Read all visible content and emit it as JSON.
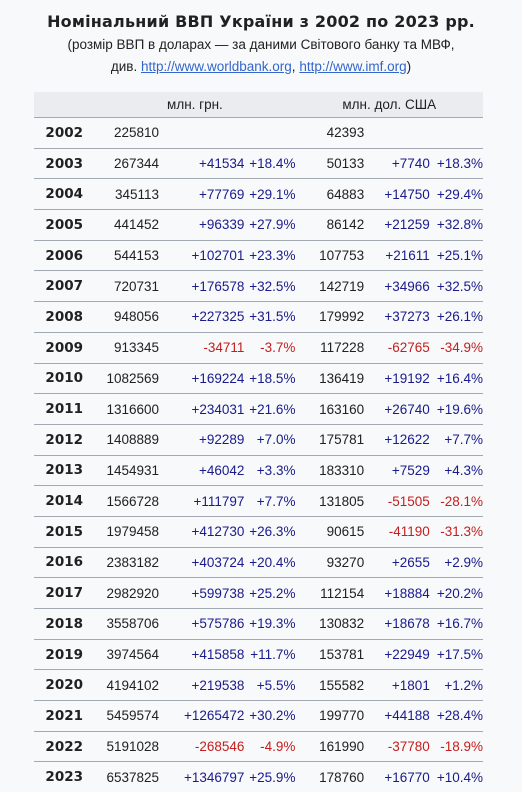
{
  "title": "Номінальний ВВП України з 2002 по 2023 рр.",
  "subtitle": {
    "line1": "(розмір ВВП в доларах — за даними Світового банку та МВФ,",
    "prefix": "див. ",
    "link1": "http://www.worldbank.org",
    "sep": ", ",
    "link2": "http://www.imf.org",
    "suffix": ")"
  },
  "header": {
    "uah": "млн. грн.",
    "usd": "млн. дол. США"
  },
  "rows": [
    {
      "year": "2002",
      "uah": "225810",
      "duah": "",
      "puah": "",
      "usd": "42393",
      "dusd": "",
      "pusd": ""
    },
    {
      "year": "2003",
      "uah": "267344",
      "duah": "+41534",
      "puah": "+18.4%",
      "usd": "50133",
      "dusd": "+7740",
      "pusd": "+18.3%"
    },
    {
      "year": "2004",
      "uah": "345113",
      "duah": "+77769",
      "puah": "+29.1%",
      "usd": "64883",
      "dusd": "+14750",
      "pusd": "+29.4%"
    },
    {
      "year": "2005",
      "uah": "441452",
      "duah": "+96339",
      "puah": "+27.9%",
      "usd": "86142",
      "dusd": "+21259",
      "pusd": "+32.8%"
    },
    {
      "year": "2006",
      "uah": "544153",
      "duah": "+102701",
      "puah": "+23.3%",
      "usd": "107753",
      "dusd": "+21611",
      "pusd": "+25.1%"
    },
    {
      "year": "2007",
      "uah": "720731",
      "duah": "+176578",
      "puah": "+32.5%",
      "usd": "142719",
      "dusd": "+34966",
      "pusd": "+32.5%"
    },
    {
      "year": "2008",
      "uah": "948056",
      "duah": "+227325",
      "puah": "+31.5%",
      "usd": "179992",
      "dusd": "+37273",
      "pusd": "+26.1%"
    },
    {
      "year": "2009",
      "uah": "913345",
      "duah": "-34711",
      "puah": "-3.7%",
      "usd": "117228",
      "dusd": "-62765",
      "pusd": "-34.9%"
    },
    {
      "year": "2010",
      "uah": "1082569",
      "duah": "+169224",
      "puah": "+18.5%",
      "usd": "136419",
      "dusd": "+19192",
      "pusd": "+16.4%"
    },
    {
      "year": "2011",
      "uah": "1316600",
      "duah": "+234031",
      "puah": "+21.6%",
      "usd": "163160",
      "dusd": "+26740",
      "pusd": "+19.6%"
    },
    {
      "year": "2012",
      "uah": "1408889",
      "duah": "+92289",
      "puah": "+7.0%",
      "usd": "175781",
      "dusd": "+12622",
      "pusd": "+7.7%"
    },
    {
      "year": "2013",
      "uah": "1454931",
      "duah": "+46042",
      "puah": "+3.3%",
      "usd": "183310",
      "dusd": "+7529",
      "pusd": "+4.3%"
    },
    {
      "year": "2014",
      "uah": "1566728",
      "duah": "+111797",
      "puah": "+7.7%",
      "usd": "131805",
      "dusd": "-51505",
      "pusd": "-28.1%"
    },
    {
      "year": "2015",
      "uah": "1979458",
      "duah": "+412730",
      "puah": "+26.3%",
      "usd": "90615",
      "dusd": "-41190",
      "pusd": "-31.3%"
    },
    {
      "year": "2016",
      "uah": "2383182",
      "duah": "+403724",
      "puah": "+20.4%",
      "usd": "93270",
      "dusd": "+2655",
      "pusd": "+2.9%"
    },
    {
      "year": "2017",
      "uah": "2982920",
      "duah": "+599738",
      "puah": "+25.2%",
      "usd": "112154",
      "dusd": "+18884",
      "pusd": "+20.2%"
    },
    {
      "year": "2018",
      "uah": "3558706",
      "duah": "+575786",
      "puah": "+19.3%",
      "usd": "130832",
      "dusd": "+18678",
      "pusd": "+16.7%"
    },
    {
      "year": "2019",
      "uah": "3974564",
      "duah": "+415858",
      "puah": "+11.7%",
      "usd": "153781",
      "dusd": "+22949",
      "pusd": "+17.5%"
    },
    {
      "year": "2020",
      "uah": "4194102",
      "duah": "+219538",
      "puah": "+5.5%",
      "usd": "155582",
      "dusd": "+1801",
      "pusd": "+1.2%"
    },
    {
      "year": "2021",
      "uah": "5459574",
      "duah": "+1265472",
      "puah": "+30.2%",
      "usd": "199770",
      "dusd": "+44188",
      "pusd": "+28.4%"
    },
    {
      "year": "2022",
      "uah": "5191028",
      "duah": "-268546",
      "puah": "-4.9%",
      "usd": "161990",
      "dusd": "-37780",
      "pusd": "-18.9%"
    },
    {
      "year": "2023",
      "uah": "6537825",
      "duah": "+1346797",
      "puah": "+25.9%",
      "usd": "178760",
      "dusd": "+16770",
      "pusd": "+10.4%"
    }
  ],
  "colors": {
    "positive": "#1a1a8c",
    "negative": "#c41e1e",
    "link": "#3366cc"
  }
}
